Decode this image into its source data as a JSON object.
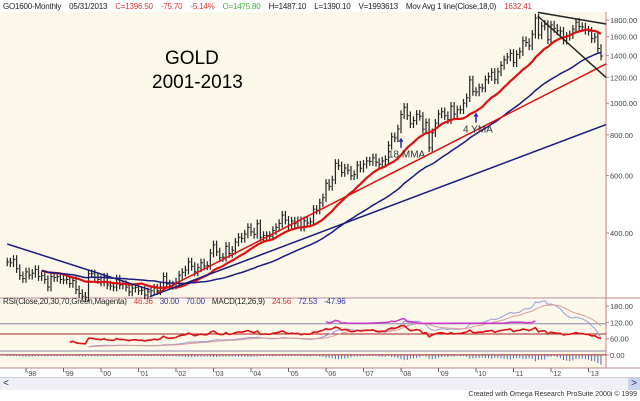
{
  "header": {
    "symbol": "GO1600-Monthly",
    "date": "05/31/2013",
    "close": "C=1396.50",
    "change": "-75.70",
    "change_pct": "-5.14%",
    "open": "O=1475.80",
    "high": "H=1487.10",
    "low": "L=1390.10",
    "volume": "V=1993613",
    "study": "Mov Avg 1 line(Close,18,0)",
    "study_value": "1632.41"
  },
  "subheader": {
    "rsi": "RSI(Close,20,30,70,Green,Magenta)",
    "rsi_value": "46.36",
    "rsi_low": "30.00",
    "rsi_high": "70.00",
    "macd": "MACD(12,26,9)",
    "macd_value": "24.56",
    "macd_avg": "72.53",
    "macd_diff": "-47.96"
  },
  "colors": {
    "background": "#fbf8ea",
    "ma18": "#dd1111",
    "ma48": "#1a1a80",
    "bars": "#222222",
    "rsi": "#dd1111",
    "magenta": "#cc33cc",
    "axis": "#c08080"
  },
  "footer": "Created with Omega Research ProSuite 2000i © 1999",
  "scroll": {
    "left": "<",
    "right": ">"
  },
  "chart_data": {
    "type": "ohlc-bar",
    "title": "GOLD",
    "subtitle": "2001-2013",
    "scale": "log",
    "start": "1997-07",
    "frequency": "monthly",
    "closes": [
      326,
      324,
      332,
      311,
      296,
      290,
      304,
      297,
      301,
      309,
      294,
      296,
      288,
      273,
      294,
      292,
      294,
      288,
      287,
      288,
      280,
      286,
      268,
      261,
      256,
      254,
      300,
      300,
      292,
      288,
      283,
      293,
      277,
      275,
      273,
      289,
      277,
      278,
      273,
      264,
      271,
      272,
      266,
      267,
      258,
      264,
      266,
      271,
      266,
      273,
      294,
      279,
      276,
      277,
      283,
      297,
      303,
      308,
      326,
      316,
      304,
      313,
      324,
      317,
      318,
      347,
      368,
      350,
      336,
      337,
      364,
      346,
      354,
      375,
      388,
      385,
      397,
      416,
      403,
      396,
      427,
      388,
      393,
      393,
      391,
      407,
      416,
      428,
      454,
      438,
      422,
      435,
      427,
      436,
      417,
      436,
      429,
      433,
      473,
      470,
      495,
      513,
      568,
      556,
      582,
      654,
      643,
      613,
      633,
      623,
      599,
      604,
      646,
      632,
      650,
      665,
      663,
      680,
      659,
      650,
      665,
      672,
      743,
      789,
      783,
      834,
      923,
      972,
      916,
      865,
      885,
      925,
      912,
      833,
      872,
      730,
      812,
      869,
      927,
      942,
      916,
      891,
      979,
      926,
      955,
      955,
      1001,
      1040,
      1179,
      1087,
      1083,
      1116,
      1113,
      1180,
      1207,
      1244,
      1181,
      1248,
      1307,
      1359,
      1386,
      1421,
      1332,
      1411,
      1439,
      1556,
      1536,
      1500,
      1628,
      1825,
      1620,
      1725,
      1746,
      1566,
      1738,
      1697,
      1669,
      1664,
      1561,
      1604,
      1622,
      1687,
      1772,
      1719,
      1713,
      1675,
      1663,
      1578,
      1595,
      1472,
      1396
    ],
    "moving_averages": [
      {
        "name": "18 MMA",
        "period": 18,
        "color": "#dd1111"
      },
      {
        "name": "4 YMA",
        "period": 48,
        "color": "#1a1a80"
      }
    ],
    "trendlines": [
      {
        "color": "#1a1a80",
        "from": [
          1997.5,
          370
        ],
        "to": [
          2001.3,
          268
        ]
      },
      {
        "color": "#1a1a80",
        "from": [
          2001.3,
          255
        ],
        "to": [
          2013.5,
          860
        ]
      },
      {
        "color": "#dd1111",
        "from": [
          2001.5,
          262
        ],
        "to": [
          2013.5,
          1320
        ]
      },
      {
        "color": "#222222",
        "from": [
          2011.65,
          1900
        ],
        "to": [
          2013.5,
          1750
        ]
      },
      {
        "color": "#222222",
        "from": [
          2011.65,
          1850
        ],
        "to": [
          2013.5,
          1200
        ]
      }
    ],
    "annotations": [
      {
        "text": "18 MMA",
        "date": 2008.0,
        "price": 720
      },
      {
        "text": "4 YMA",
        "date": 2010.0,
        "price": 860
      }
    ],
    "y_ticks": [
      "1800.00",
      "1600.00",
      "1400.00",
      "1200.00",
      "1000.00",
      "800.00",
      "600.00",
      "400.00"
    ],
    "y_tick_values": [
      1800,
      1600,
      1400,
      1200,
      1000,
      800,
      600,
      400
    ],
    "lower_ticks": [
      "180.00",
      "120.00",
      "60.00",
      "0.00"
    ],
    "lower_tick_values": [
      180,
      120,
      60,
      0
    ],
    "x_ticks": [
      "98",
      "99",
      "00",
      "01",
      "02",
      "03",
      "04",
      "05",
      "06",
      "07",
      "08",
      "09",
      "10",
      "11",
      "12",
      "13"
    ],
    "x_tick_years": [
      1998,
      1999,
      2000,
      2001,
      2002,
      2003,
      2004,
      2005,
      2006,
      2007,
      2008,
      2009,
      2010,
      2011,
      2012,
      2013
    ]
  }
}
